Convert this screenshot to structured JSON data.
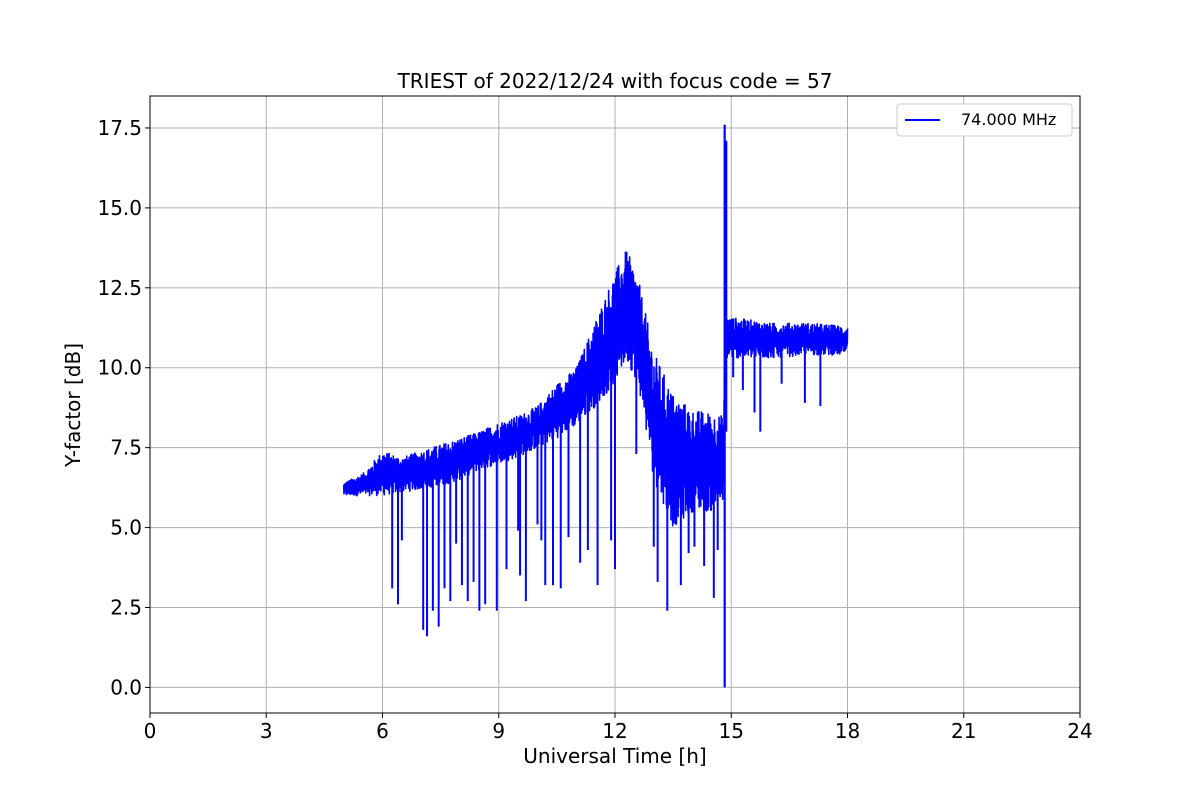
{
  "chart_data": {
    "type": "line",
    "title": "TRIEST of 2022/12/24 with focus code = 57",
    "xlabel": "Universal Time [h]",
    "ylabel": "Y-factor [dB]",
    "xlim": [
      0,
      24
    ],
    "ylim": [
      -0.8,
      18.5
    ],
    "xticks": [
      0,
      3,
      6,
      9,
      12,
      15,
      18,
      21,
      24
    ],
    "xtick_labels": [
      "0",
      "3",
      "6",
      "9",
      "12",
      "15",
      "18",
      "21",
      "24"
    ],
    "yticks": [
      0,
      2.5,
      5,
      7.5,
      10,
      12.5,
      15,
      17.5
    ],
    "ytick_labels": [
      "0.0",
      "2.5",
      "5.0",
      "7.5",
      "10.0",
      "12.5",
      "15.0",
      "17.5"
    ],
    "grid": true,
    "legend_position": "top-right",
    "series": [
      {
        "name": "74.000 MHz",
        "color": "#0000ff",
        "envelope": [
          {
            "x": 5.0,
            "low": 6.0,
            "high": 6.4
          },
          {
            "x": 5.5,
            "low": 6.0,
            "high": 6.7
          },
          {
            "x": 6.0,
            "low": 6.0,
            "high": 7.4
          },
          {
            "x": 6.5,
            "low": 6.1,
            "high": 7.2
          },
          {
            "x": 7.0,
            "low": 6.2,
            "high": 7.4
          },
          {
            "x": 7.5,
            "low": 6.3,
            "high": 7.6
          },
          {
            "x": 8.0,
            "low": 6.5,
            "high": 7.8
          },
          {
            "x": 8.5,
            "low": 6.8,
            "high": 8.0
          },
          {
            "x": 9.0,
            "low": 7.0,
            "high": 8.3
          },
          {
            "x": 9.5,
            "low": 7.2,
            "high": 8.5
          },
          {
            "x": 10.0,
            "low": 7.5,
            "high": 8.8
          },
          {
            "x": 10.5,
            "low": 7.8,
            "high": 9.5
          },
          {
            "x": 11.0,
            "low": 8.2,
            "high": 10.0
          },
          {
            "x": 11.5,
            "low": 8.8,
            "high": 11.5
          },
          {
            "x": 12.0,
            "low": 9.5,
            "high": 13.0
          },
          {
            "x": 12.3,
            "low": 10.2,
            "high": 13.7
          },
          {
            "x": 12.6,
            "low": 9.5,
            "high": 12.8
          },
          {
            "x": 13.0,
            "low": 6.5,
            "high": 10.5
          },
          {
            "x": 13.5,
            "low": 5.0,
            "high": 9.2
          },
          {
            "x": 14.0,
            "low": 5.5,
            "high": 8.7
          },
          {
            "x": 14.5,
            "low": 5.5,
            "high": 8.6
          },
          {
            "x": 14.8,
            "low": 5.8,
            "high": 8.5
          },
          {
            "x": 14.85,
            "low": 10.3,
            "high": 11.6
          },
          {
            "x": 15.5,
            "low": 10.3,
            "high": 11.5
          },
          {
            "x": 16.0,
            "low": 10.3,
            "high": 11.4
          },
          {
            "x": 17.0,
            "low": 10.4,
            "high": 11.4
          },
          {
            "x": 18.0,
            "low": 10.4,
            "high": 11.3
          }
        ],
        "dips": [
          {
            "x": 6.25,
            "y": 3.1
          },
          {
            "x": 6.4,
            "y": 2.6
          },
          {
            "x": 6.5,
            "y": 4.6
          },
          {
            "x": 7.05,
            "y": 1.8
          },
          {
            "x": 7.15,
            "y": 1.6
          },
          {
            "x": 7.3,
            "y": 2.4
          },
          {
            "x": 7.45,
            "y": 1.9
          },
          {
            "x": 7.6,
            "y": 3.1
          },
          {
            "x": 7.75,
            "y": 2.7
          },
          {
            "x": 7.9,
            "y": 4.5
          },
          {
            "x": 8.05,
            "y": 3.2
          },
          {
            "x": 8.2,
            "y": 2.7
          },
          {
            "x": 8.35,
            "y": 3.3
          },
          {
            "x": 8.5,
            "y": 2.4
          },
          {
            "x": 8.65,
            "y": 2.6
          },
          {
            "x": 8.95,
            "y": 2.4
          },
          {
            "x": 9.2,
            "y": 3.7
          },
          {
            "x": 9.5,
            "y": 4.9
          },
          {
            "x": 9.55,
            "y": 3.5
          },
          {
            "x": 9.7,
            "y": 2.7
          },
          {
            "x": 10.0,
            "y": 5.1
          },
          {
            "x": 10.1,
            "y": 4.6
          },
          {
            "x": 10.2,
            "y": 3.2
          },
          {
            "x": 10.4,
            "y": 3.2
          },
          {
            "x": 10.6,
            "y": 3.1
          },
          {
            "x": 10.8,
            "y": 4.7
          },
          {
            "x": 11.1,
            "y": 3.9
          },
          {
            "x": 11.3,
            "y": 4.3
          },
          {
            "x": 11.55,
            "y": 3.2
          },
          {
            "x": 11.9,
            "y": 4.6
          },
          {
            "x": 12.0,
            "y": 3.7
          },
          {
            "x": 12.55,
            "y": 7.3
          },
          {
            "x": 13.0,
            "y": 4.4
          },
          {
            "x": 13.1,
            "y": 3.3
          },
          {
            "x": 13.35,
            "y": 2.4
          },
          {
            "x": 13.7,
            "y": 3.2
          },
          {
            "x": 13.9,
            "y": 4.2
          },
          {
            "x": 14.05,
            "y": 4.4
          },
          {
            "x": 14.3,
            "y": 3.8
          },
          {
            "x": 14.55,
            "y": 2.8
          },
          {
            "x": 14.65,
            "y": 4.3
          },
          {
            "x": 15.3,
            "y": 9.3
          },
          {
            "x": 15.6,
            "y": 8.6
          },
          {
            "x": 15.75,
            "y": 8.0
          },
          {
            "x": 16.9,
            "y": 8.9
          },
          {
            "x": 17.3,
            "y": 8.8
          },
          {
            "x": 15.05,
            "y": 9.7
          },
          {
            "x": 16.3,
            "y": 9.5
          }
        ],
        "spikes": [
          {
            "x": 14.83,
            "low": 0.0,
            "high": 17.6
          },
          {
            "x": 14.87,
            "low": 8.0,
            "high": 17.1
          }
        ]
      }
    ]
  }
}
